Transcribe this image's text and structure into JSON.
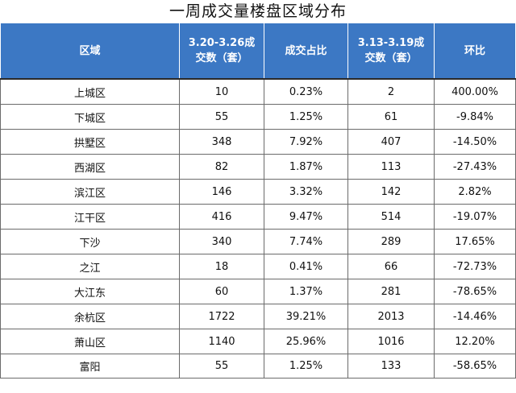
{
  "title": "一周成交量楼盘区域分布",
  "headers": {
    "region": "区域",
    "cur_volume_line1": "3.20-3.26成",
    "cur_volume_line2": "交数（套）",
    "share": "成交占比",
    "prev_volume_line1": "3.13-3.19成",
    "prev_volume_line2": "交数（套）",
    "change": "环比"
  },
  "rows": [
    {
      "region": "上城区",
      "cur": "10",
      "share": "0.23%",
      "prev": "2",
      "change": "400.00%"
    },
    {
      "region": "下城区",
      "cur": "55",
      "share": "1.25%",
      "prev": "61",
      "change": "-9.84%"
    },
    {
      "region": "拱墅区",
      "cur": "348",
      "share": "7.92%",
      "prev": "407",
      "change": "-14.50%"
    },
    {
      "region": "西湖区",
      "cur": "82",
      "share": "1.87%",
      "prev": "113",
      "change": "-27.43%"
    },
    {
      "region": "滨江区",
      "cur": "146",
      "share": "3.32%",
      "prev": "142",
      "change": "2.82%"
    },
    {
      "region": "江干区",
      "cur": "416",
      "share": "9.47%",
      "prev": "514",
      "change": "-19.07%"
    },
    {
      "region": "下沙",
      "cur": "340",
      "share": "7.74%",
      "prev": "289",
      "change": "17.65%"
    },
    {
      "region": "之江",
      "cur": "18",
      "share": "0.41%",
      "prev": "66",
      "change": "-72.73%"
    },
    {
      "region": "大江东",
      "cur": "60",
      "share": "1.37%",
      "prev": "281",
      "change": "-78.65%"
    },
    {
      "region": "余杭区",
      "cur": "1722",
      "share": "39.21%",
      "prev": "2013",
      "change": "-14.46%"
    },
    {
      "region": "萧山区",
      "cur": "1140",
      "share": "25.96%",
      "prev": "1016",
      "change": "12.20%"
    },
    {
      "region": "富阳",
      "cur": "55",
      "share": "1.25%",
      "prev": "133",
      "change": "-58.65%"
    }
  ],
  "colors": {
    "header_bg": "#3c78c4",
    "header_text": "#ffffff",
    "border": "#6b6b6b"
  }
}
